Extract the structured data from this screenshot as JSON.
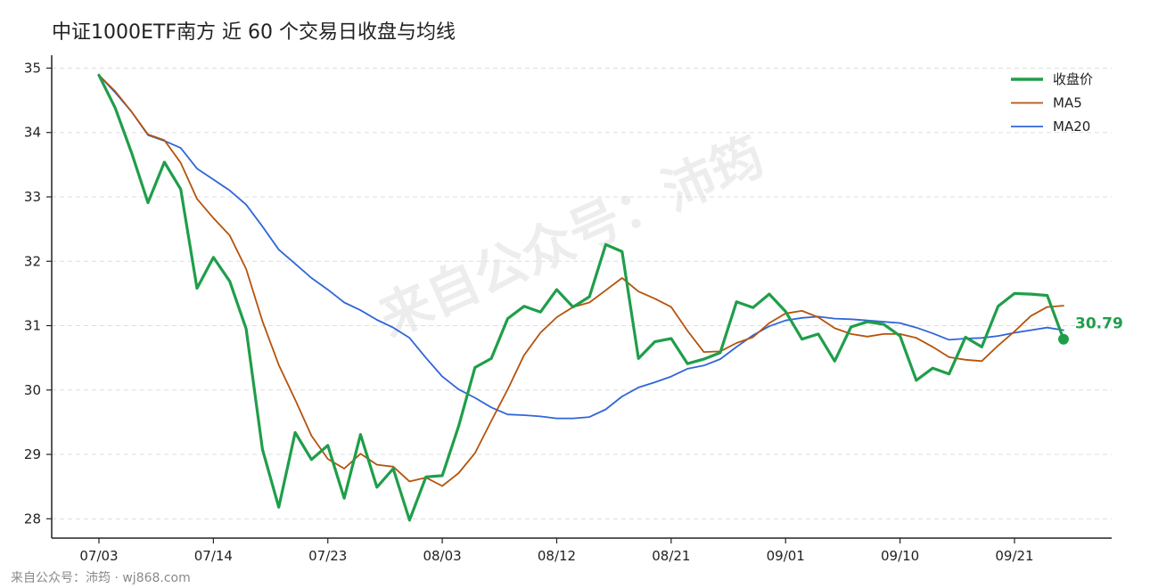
{
  "title": "中证1000ETF南方 近 60 个交易日收盘与均线",
  "watermark": "来自公众号：沛筠",
  "footer": "来自公众号：沛筠 · wj868.com",
  "colors": {
    "close": "#1f9e4a",
    "ma5": "#b5530d",
    "ma20": "#2f66d8",
    "axis": "#222222",
    "grid": "#dddddd"
  },
  "chart_data": {
    "type": "line",
    "title": "中证1000ETF南方 近 60 个交易日收盘与均线",
    "xlabel": "",
    "ylabel": "",
    "ylim": [
      27.7,
      35.2
    ],
    "yticks": [
      28,
      29,
      30,
      31,
      32,
      33,
      34,
      35
    ],
    "xtick_labels": [
      "07/03",
      "07/14",
      "07/23",
      "08/03",
      "08/12",
      "08/21",
      "09/01",
      "09/10",
      "09/21"
    ],
    "xtick_index": [
      0,
      7,
      14,
      21,
      28,
      35,
      42,
      49,
      56
    ],
    "grid": "horizontal dashed",
    "legend_position": "top-right",
    "last_value_label": "30.79",
    "series": [
      {
        "name": "收盘价",
        "key": "close",
        "values": [
          34.89,
          34.38,
          33.68,
          32.91,
          33.54,
          33.12,
          31.58,
          32.06,
          31.69,
          30.95,
          29.08,
          28.18,
          29.34,
          28.92,
          29.14,
          28.32,
          29.31,
          28.49,
          28.78,
          27.98,
          28.65,
          28.67,
          29.44,
          30.35,
          30.49,
          31.11,
          31.3,
          31.21,
          31.56,
          31.29,
          31.45,
          32.26,
          32.15,
          30.49,
          30.75,
          30.8,
          30.41,
          30.48,
          30.58,
          31.37,
          31.28,
          31.49,
          31.22,
          30.79,
          30.87,
          30.45,
          30.98,
          31.06,
          31.02,
          30.84,
          30.15,
          30.34,
          30.25,
          30.82,
          30.67,
          31.3,
          31.5,
          31.49,
          31.47,
          30.79
        ]
      },
      {
        "name": "MA5",
        "key": "ma5",
        "values": [
          34.89,
          34.64,
          34.32,
          33.97,
          33.88,
          33.53,
          32.97,
          32.67,
          32.4,
          31.88,
          31.07,
          30.39,
          29.85,
          29.29,
          28.93,
          28.78,
          29.01,
          28.84,
          28.81,
          28.58,
          28.64,
          28.51,
          28.71,
          29.02,
          29.52,
          30.01,
          30.54,
          30.89,
          31.13,
          31.29,
          31.36,
          31.55,
          31.74,
          31.53,
          31.42,
          31.29,
          30.92,
          30.59,
          30.6,
          30.73,
          30.82,
          31.04,
          31.19,
          31.23,
          31.13,
          30.96,
          30.87,
          30.83,
          30.87,
          30.87,
          30.81,
          30.67,
          30.51,
          30.47,
          30.45,
          30.69,
          30.91,
          31.15,
          31.29,
          31.31
        ]
      },
      {
        "name": "MA20",
        "key": "ma20",
        "values": [
          34.89,
          34.62,
          34.32,
          33.96,
          33.87,
          33.76,
          33.44,
          33.27,
          33.1,
          32.88,
          32.54,
          32.18,
          31.96,
          31.74,
          31.56,
          31.36,
          31.24,
          31.09,
          30.97,
          30.81,
          30.5,
          30.21,
          30.01,
          29.88,
          29.73,
          29.62,
          29.61,
          29.59,
          29.56,
          29.56,
          29.58,
          29.7,
          29.9,
          30.04,
          30.12,
          30.21,
          30.33,
          30.38,
          30.48,
          30.67,
          30.85,
          30.99,
          31.08,
          31.12,
          31.14,
          31.11,
          31.1,
          31.08,
          31.06,
          31.04,
          30.97,
          30.88,
          30.78,
          30.8,
          30.81,
          30.84,
          30.89,
          30.93,
          30.97,
          30.93
        ]
      }
    ]
  }
}
